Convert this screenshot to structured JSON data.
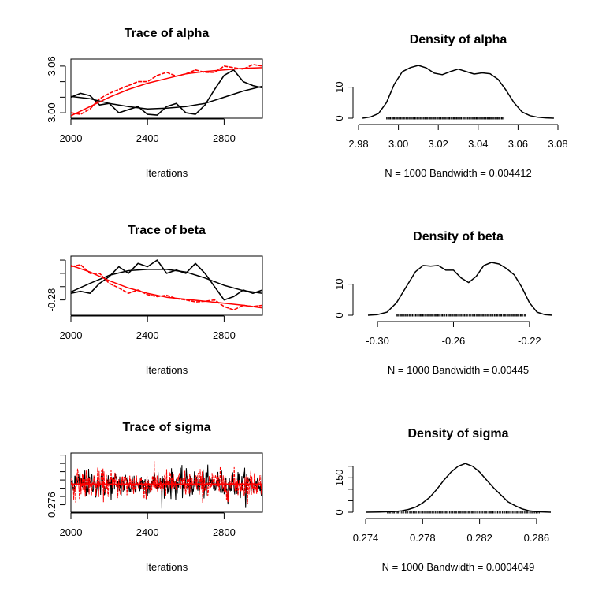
{
  "chart_data": [
    {
      "type": "line",
      "title": "Trace of alpha",
      "xlabel": "Iterations",
      "xlim": [
        2000,
        3000
      ],
      "ylim": [
        2.993,
        3.069
      ],
      "x_ticks": [
        2000,
        2400,
        2800
      ],
      "y_ticks": [
        3.0,
        3.02,
        3.04,
        3.06
      ],
      "y_tick_labels": [
        "3.00",
        "",
        "",
        "3.06"
      ],
      "series": [
        {
          "color": "#000000",
          "x": [
            2000,
            2050,
            2100,
            2150,
            2200,
            2250,
            2300,
            2350,
            2400,
            2450,
            2500,
            2550,
            2600,
            2650,
            2700,
            2750,
            2800,
            2850,
            2900,
            2950,
            3000
          ],
          "values": [
            3.02,
            3.025,
            3.022,
            3.01,
            3.012,
            3.0,
            3.004,
            3.008,
            2.998,
            2.997,
            3.008,
            3.012,
            3.0,
            2.998,
            3.01,
            3.03,
            3.048,
            3.055,
            3.04,
            3.035,
            3.032
          ]
        },
        {
          "color": "#ff0000",
          "x": [
            2000,
            2050,
            2100,
            2150,
            2200,
            2250,
            2300,
            2350,
            2400,
            2450,
            2500,
            2550,
            2600,
            2650,
            2700,
            2750,
            2800,
            2850,
            2900,
            2950,
            3000
          ],
          "values": [
            3.0,
            2.998,
            3.005,
            3.018,
            3.025,
            3.03,
            3.035,
            3.04,
            3.04,
            3.048,
            3.052,
            3.047,
            3.05,
            3.055,
            3.052,
            3.052,
            3.06,
            3.058,
            3.056,
            3.062,
            3.06
          ]
        },
        {
          "color": "#000000",
          "smooth": true,
          "x": [
            2000,
            2100,
            2200,
            2300,
            2400,
            2500,
            2600,
            2700,
            2800,
            2900,
            3000
          ],
          "values": [
            3.021,
            3.018,
            3.012,
            3.008,
            3.005,
            3.006,
            3.008,
            3.012,
            3.02,
            3.028,
            3.034
          ]
        },
        {
          "color": "#ff0000",
          "smooth": true,
          "x": [
            2000,
            2100,
            2200,
            2300,
            2400,
            2500,
            2600,
            2700,
            2800,
            2900,
            3000
          ],
          "values": [
            2.996,
            3.008,
            3.02,
            3.03,
            3.038,
            3.044,
            3.05,
            3.053,
            3.055,
            3.057,
            3.058
          ]
        }
      ]
    },
    {
      "type": "line",
      "title": "Density of alpha",
      "xlabel": "N = 1000   Bandwidth = 0.004412",
      "xlim": [
        2.98,
        3.08
      ],
      "ylim": [
        0,
        17
      ],
      "x_ticks": [
        2.98,
        3.0,
        3.02,
        3.04,
        3.06,
        3.08
      ],
      "x_tick_labels": [
        "2.98",
        "3.00",
        "3.02",
        "3.04",
        "3.06",
        "3.08"
      ],
      "y_ticks": [
        0,
        10
      ],
      "y_tick_labels": [
        "0",
        "10"
      ],
      "rug": [
        2.994,
        3.053
      ],
      "series": [
        {
          "color": "#000000",
          "x": [
            2.982,
            2.986,
            2.99,
            2.994,
            2.998,
            3.002,
            3.006,
            3.01,
            3.014,
            3.018,
            3.022,
            3.026,
            3.03,
            3.034,
            3.038,
            3.042,
            3.046,
            3.05,
            3.054,
            3.058,
            3.062,
            3.066,
            3.07,
            3.074,
            3.078
          ],
          "values": [
            0,
            0.4,
            1.5,
            5,
            11,
            15,
            16.3,
            17,
            16.2,
            14.5,
            14,
            15,
            15.8,
            15,
            14.2,
            14.6,
            14.3,
            12.5,
            9,
            5,
            2,
            0.8,
            0.3,
            0.1,
            0
          ]
        }
      ]
    },
    {
      "type": "line",
      "title": "Trace of beta",
      "xlabel": "Iterations",
      "xlim": [
        2000,
        3000
      ],
      "ylim": [
        -0.303,
        -0.214
      ],
      "x_ticks": [
        2000,
        2400,
        2800
      ],
      "y_ticks": [
        -0.28,
        -0.26,
        -0.24,
        -0.22
      ],
      "y_tick_labels": [
        "-0.28",
        "",
        "",
        ""
      ],
      "series": [
        {
          "color": "#000000",
          "x": [
            2000,
            2050,
            2100,
            2150,
            2200,
            2250,
            2300,
            2350,
            2400,
            2450,
            2500,
            2550,
            2600,
            2650,
            2700,
            2750,
            2800,
            2850,
            2900,
            2950,
            3000
          ],
          "values": [
            -0.27,
            -0.267,
            -0.27,
            -0.255,
            -0.245,
            -0.23,
            -0.24,
            -0.225,
            -0.23,
            -0.22,
            -0.24,
            -0.235,
            -0.24,
            -0.225,
            -0.24,
            -0.26,
            -0.28,
            -0.275,
            -0.265,
            -0.27,
            -0.265
          ]
        },
        {
          "color": "#ff0000",
          "x": [
            2000,
            2050,
            2100,
            2150,
            2200,
            2250,
            2300,
            2350,
            2400,
            2450,
            2500,
            2550,
            2600,
            2650,
            2700,
            2750,
            2800,
            2850,
            2900,
            2950,
            3000
          ],
          "values": [
            -0.23,
            -0.227,
            -0.24,
            -0.24,
            -0.255,
            -0.262,
            -0.27,
            -0.265,
            -0.272,
            -0.275,
            -0.273,
            -0.278,
            -0.28,
            -0.283,
            -0.282,
            -0.28,
            -0.29,
            -0.295,
            -0.288,
            -0.29,
            -0.288
          ]
        },
        {
          "color": "#000000",
          "smooth": true,
          "x": [
            2000,
            2100,
            2200,
            2300,
            2400,
            2500,
            2600,
            2700,
            2800,
            2900,
            3000
          ],
          "values": [
            -0.268,
            -0.255,
            -0.243,
            -0.236,
            -0.234,
            -0.234,
            -0.238,
            -0.247,
            -0.258,
            -0.266,
            -0.27
          ]
        },
        {
          "color": "#ff0000",
          "smooth": true,
          "x": [
            2000,
            2100,
            2200,
            2300,
            2400,
            2500,
            2600,
            2700,
            2800,
            2900,
            3000
          ],
          "values": [
            -0.228,
            -0.238,
            -0.251,
            -0.262,
            -0.27,
            -0.276,
            -0.279,
            -0.282,
            -0.285,
            -0.288,
            -0.292
          ]
        }
      ]
    },
    {
      "type": "line",
      "title": "Density of beta",
      "xlabel": "N = 1000   Bandwidth = 0.00445",
      "xlim": [
        -0.31,
        -0.205
      ],
      "ylim": [
        0,
        17
      ],
      "x_ticks": [
        -0.3,
        -0.26,
        -0.22
      ],
      "x_tick_labels": [
        "-0.30",
        "-0.26",
        "-0.22"
      ],
      "y_ticks": [
        0,
        10
      ],
      "y_tick_labels": [
        "0",
        "10"
      ],
      "rug": [
        -0.29,
        -0.222
      ],
      "series": [
        {
          "color": "#000000",
          "x": [
            -0.305,
            -0.3,
            -0.295,
            -0.29,
            -0.285,
            -0.28,
            -0.276,
            -0.272,
            -0.268,
            -0.264,
            -0.26,
            -0.256,
            -0.252,
            -0.248,
            -0.244,
            -0.24,
            -0.236,
            -0.232,
            -0.228,
            -0.224,
            -0.22,
            -0.216,
            -0.212,
            -0.208
          ],
          "values": [
            0,
            0.2,
            1,
            4,
            9,
            14,
            16,
            15.8,
            16,
            14.5,
            14.5,
            12,
            10.5,
            12.5,
            16,
            17,
            16.5,
            15,
            13,
            9,
            4,
            1,
            0.2,
            0
          ]
        }
      ]
    },
    {
      "type": "line",
      "title": "Trace of sigma",
      "xlabel": "Iterations",
      "xlim": [
        2000,
        3000
      ],
      "ylim": [
        0.2742,
        0.2885
      ],
      "x_ticks": [
        2000,
        2400,
        2800
      ],
      "y_ticks": [
        0.276,
        0.278,
        0.28,
        0.282,
        0.284,
        0.286,
        0.288
      ],
      "y_tick_labels": [
        "0.276",
        "",
        "",
        "",
        "",
        "",
        ""
      ],
      "noise": {
        "color_a": "#000000",
        "color_b": "#ff0000",
        "mean": 0.281,
        "sd": 0.0017
      },
      "series": [
        {
          "color": "#ff0000",
          "smooth": true,
          "x": [
            2000,
            3000
          ],
          "values": [
            0.281,
            0.281
          ]
        }
      ]
    },
    {
      "type": "line",
      "title": "Density of sigma",
      "xlabel": "N = 1000   Bandwidth = 0.0004049",
      "xlim": [
        0.2735,
        0.2875
      ],
      "ylim": [
        0,
        230
      ],
      "x_ticks": [
        0.274,
        0.278,
        0.282,
        0.286
      ],
      "x_tick_labels": [
        "0.274",
        "0.278",
        "0.282",
        "0.286"
      ],
      "y_ticks": [
        0,
        50,
        100,
        150,
        200
      ],
      "y_tick_labels": [
        "0",
        "",
        "",
        "150",
        ""
      ],
      "rug": [
        0.2755,
        0.2862
      ],
      "series": [
        {
          "color": "#000000",
          "x": [
            0.274,
            0.275,
            0.276,
            0.2765,
            0.277,
            0.2775,
            0.278,
            0.2785,
            0.279,
            0.2795,
            0.28,
            0.2805,
            0.281,
            0.2815,
            0.282,
            0.2825,
            0.283,
            0.2835,
            0.284,
            0.2845,
            0.285,
            0.2855,
            0.286,
            0.287
          ],
          "values": [
            0,
            1,
            3,
            6,
            12,
            22,
            40,
            65,
            100,
            140,
            175,
            200,
            212,
            200,
            175,
            140,
            105,
            75,
            45,
            28,
            14,
            6,
            2,
            0
          ]
        }
      ]
    }
  ]
}
